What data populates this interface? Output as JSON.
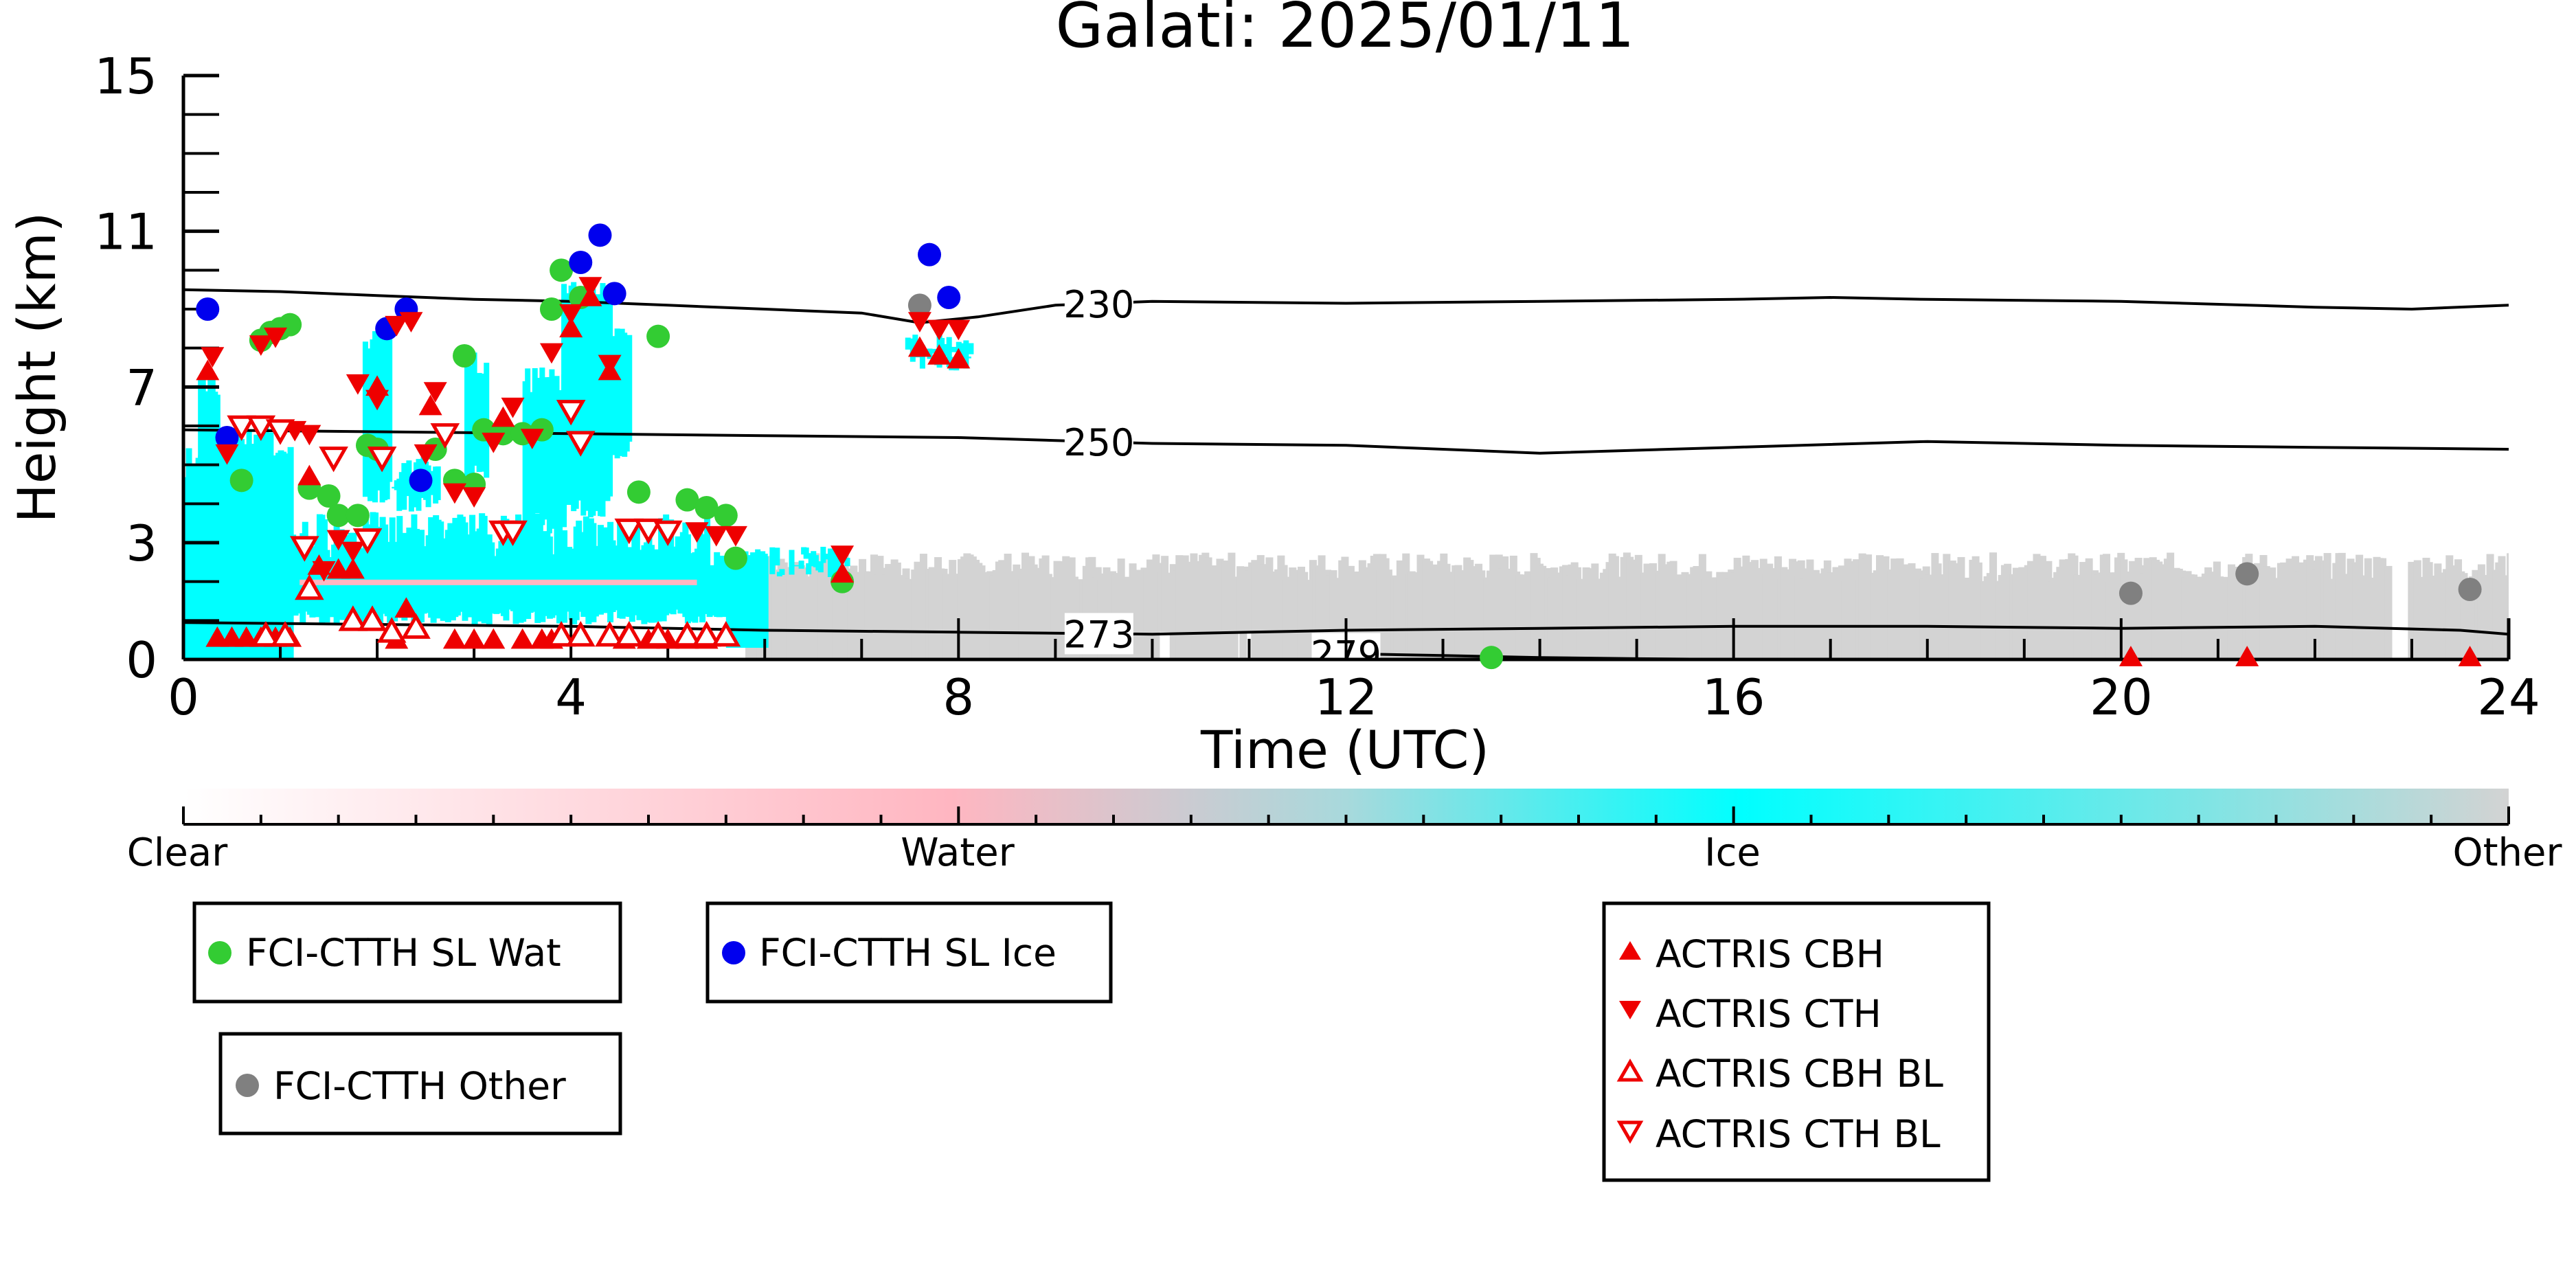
{
  "chart_data": {
    "type": "scatter",
    "title": "Galati: 2025/01/11",
    "xlabel": "Time (UTC)",
    "ylabel": "Height (km)",
    "xlim": [
      0,
      24
    ],
    "ylim": [
      0,
      15
    ],
    "x_ticks": [
      "0",
      "4",
      "8",
      "12",
      "16",
      "20",
      "24"
    ],
    "y_ticks": [
      "0",
      "3",
      "7",
      "11",
      "15"
    ],
    "isotherms": [
      {
        "label": "230",
        "x": [
          0,
          1,
          2,
          3,
          4,
          5,
          6,
          7,
          7.6,
          8.2,
          9,
          10,
          12,
          14,
          16,
          17,
          18,
          20,
          22,
          23,
          24
        ],
        "y": [
          9.5,
          9.45,
          9.35,
          9.25,
          9.2,
          9.1,
          9.0,
          8.9,
          8.65,
          8.8,
          9.1,
          9.2,
          9.15,
          9.2,
          9.25,
          9.3,
          9.25,
          9.2,
          9.05,
          9.0,
          9.1
        ]
      },
      {
        "label": "250",
        "x": [
          0,
          2,
          4,
          6,
          8,
          10,
          12,
          14,
          16,
          18,
          20,
          22,
          24
        ],
        "y": [
          5.9,
          5.85,
          5.8,
          5.75,
          5.7,
          5.55,
          5.5,
          5.3,
          5.45,
          5.6,
          5.5,
          5.45,
          5.4
        ]
      },
      {
        "label": "273",
        "x": [
          0,
          2,
          4,
          6,
          8,
          10,
          12,
          14,
          16,
          18,
          20,
          22,
          23.5,
          24
        ],
        "y": [
          0.95,
          0.9,
          0.85,
          0.75,
          0.7,
          0.65,
          0.75,
          0.8,
          0.85,
          0.85,
          0.8,
          0.85,
          0.75,
          0.65
        ]
      },
      {
        "label": "279",
        "x": [
          12,
          13,
          14,
          15,
          16
        ],
        "y": [
          0.15,
          0.1,
          0.05,
          0.02,
          0.0
        ]
      }
    ],
    "colorbar": {
      "labels": [
        "Clear",
        "Water",
        "Ice",
        "Other"
      ],
      "colors": [
        "#ffffff",
        "#ffb6c1",
        "#00ffff",
        "#d3d3d3"
      ]
    },
    "series": [
      {
        "name": "FCI-CTTH SL Wat",
        "color": "#33cc33",
        "marker": "circle",
        "x": [
          0.6,
          0.8,
          0.9,
          1.0,
          1.1,
          1.3,
          1.5,
          1.6,
          1.8,
          1.9,
          2.0,
          2.6,
          2.8,
          2.9,
          3.0,
          3.1,
          3.3,
          3.5,
          3.7,
          3.8,
          3.9,
          4.1,
          4.7,
          4.9,
          5.2,
          5.4,
          5.6,
          5.7,
          6.8,
          13.5
        ],
        "y": [
          4.6,
          8.2,
          8.4,
          8.5,
          8.6,
          4.4,
          4.2,
          3.7,
          3.7,
          5.5,
          5.4,
          5.4,
          4.6,
          7.8,
          4.5,
          5.9,
          5.8,
          5.8,
          5.9,
          9.0,
          10.0,
          9.3,
          4.3,
          8.3,
          4.1,
          3.9,
          3.7,
          2.6,
          2.0,
          0.05
        ]
      },
      {
        "name": "FCI-CTTH SL Ice",
        "color": "#0000ee",
        "marker": "circle",
        "x": [
          0.25,
          0.45,
          2.1,
          2.3,
          2.45,
          4.1,
          4.3,
          4.45,
          7.7,
          7.9
        ],
        "y": [
          9.0,
          5.7,
          8.5,
          9.0,
          4.6,
          10.2,
          10.9,
          9.4,
          10.4,
          9.3
        ]
      },
      {
        "name": "FCI-CTTH Other",
        "color": "#808080",
        "marker": "circle",
        "x": [
          7.6,
          20.1,
          21.3,
          23.6
        ],
        "y": [
          9.1,
          1.7,
          2.2,
          1.8
        ]
      },
      {
        "name": "ACTRIS CBH",
        "color": "#ee0000",
        "marker": "triangle-up",
        "x": [
          0.25,
          0.35,
          0.5,
          0.65,
          0.8,
          0.95,
          1.1,
          1.3,
          1.4,
          1.6,
          1.75,
          2.0,
          2.2,
          2.3,
          2.55,
          2.8,
          3.0,
          3.2,
          3.3,
          3.5,
          3.7,
          3.8,
          4.0,
          4.2,
          4.4,
          4.55,
          4.8,
          5.0,
          5.2,
          5.4,
          5.6,
          6.8,
          7.6,
          7.8,
          8.0,
          20.1,
          21.3,
          23.6
        ],
        "y": [
          7.4,
          0.55,
          0.55,
          0.55,
          0.55,
          0.55,
          0.55,
          4.7,
          2.4,
          2.3,
          2.3,
          7.0,
          0.5,
          1.3,
          6.5,
          0.5,
          0.5,
          0.5,
          6.2,
          0.5,
          0.5,
          0.5,
          8.5,
          9.3,
          7.4,
          0.5,
          0.5,
          0.5,
          0.5,
          0.5,
          0.6,
          2.2,
          8.0,
          7.8,
          7.7,
          0.05,
          0.05,
          0.05
        ]
      },
      {
        "name": "ACTRIS CTH",
        "color": "#ee0000",
        "marker": "triangle-down",
        "x": [
          0.3,
          0.45,
          0.8,
          0.95,
          1.15,
          1.3,
          1.45,
          1.6,
          1.75,
          1.8,
          2.0,
          2.2,
          2.35,
          2.5,
          2.6,
          2.8,
          3.0,
          3.2,
          3.4,
          3.6,
          3.8,
          4.0,
          4.2,
          4.4,
          5.0,
          5.3,
          5.5,
          5.7,
          6.8,
          7.6,
          7.8,
          8.0
        ],
        "y": [
          7.8,
          5.3,
          8.1,
          8.3,
          5.9,
          5.8,
          2.3,
          3.1,
          2.8,
          7.1,
          6.7,
          8.6,
          8.7,
          5.3,
          6.9,
          4.3,
          4.2,
          5.6,
          6.5,
          5.7,
          7.9,
          8.9,
          9.6,
          7.6,
          3.3,
          3.3,
          3.2,
          3.2,
          2.7,
          8.7,
          8.5,
          8.5
        ]
      },
      {
        "name": "ACTRIS CBH BL",
        "color": "#ee0000",
        "marker": "triangle-up-open",
        "x": [
          0.85,
          1.05,
          1.3,
          1.75,
          1.95,
          2.15,
          2.4,
          3.9,
          4.1,
          4.4,
          4.6,
          4.9,
          5.2,
          5.4,
          5.6
        ],
        "y": [
          0.6,
          0.6,
          1.8,
          1.0,
          1.0,
          0.7,
          0.8,
          0.6,
          0.6,
          0.6,
          0.6,
          0.6,
          0.6,
          0.6,
          0.6
        ]
      },
      {
        "name": "ACTRIS CTH BL",
        "color": "#ee0000",
        "marker": "triangle-down-open",
        "x": [
          0.6,
          0.8,
          1.0,
          1.25,
          1.55,
          1.9,
          2.05,
          2.7,
          3.3,
          3.4,
          4.0,
          4.1,
          4.6,
          4.8,
          5.0
        ],
        "y": [
          6.0,
          6.0,
          5.9,
          2.9,
          5.2,
          3.1,
          5.2,
          5.8,
          3.3,
          3.3,
          6.4,
          5.6,
          3.35,
          3.35,
          3.3
        ]
      }
    ]
  },
  "legend": {
    "items": [
      {
        "label": "FCI-CTTH SL Wat"
      },
      {
        "label": "FCI-CTTH SL Ice"
      },
      {
        "label": "FCI-CTTH Other"
      },
      {
        "label": "ACTRIS CBH"
      },
      {
        "label": "ACTRIS CTH"
      },
      {
        "label": "ACTRIS CBH BL"
      },
      {
        "label": "ACTRIS CTH BL"
      }
    ]
  }
}
